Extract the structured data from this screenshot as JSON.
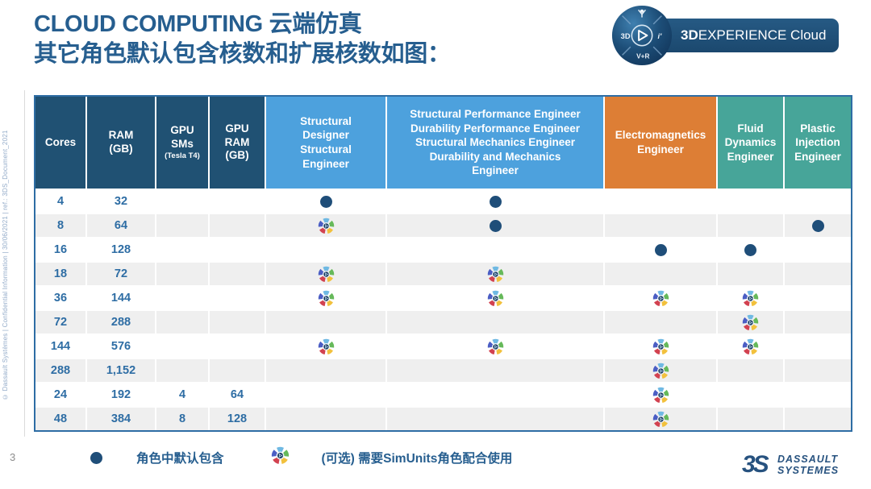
{
  "page": {
    "title_line1": "CLOUD COMPUTING 云端仿真",
    "title_line2": "其它角色默认包含核数和扩展核数如图：",
    "page_number": "3",
    "sidebar_note": "© Dassault Systèmes | Confidential Information | 30/06/2021 | ref.: 3DS_Document_2021"
  },
  "logo": {
    "brand_bold": "3D",
    "brand_rest": "EXPERIENCE Cloud",
    "compass": {
      "left": "3D",
      "right": "i'",
      "bottom": "V+R"
    }
  },
  "table": {
    "spec_columns": [
      {
        "label": "Cores",
        "sub": ""
      },
      {
        "label": "RAM\n(GB)",
        "sub": ""
      },
      {
        "label": "GPU\nSMs",
        "sub": "(Tesla T4)"
      },
      {
        "label": "GPU\nRAM\n(GB)",
        "sub": ""
      }
    ],
    "role_columns": [
      {
        "label": "Structural Designer\nStructural Engineer",
        "color": "#4da1dd",
        "narrow": true
      },
      {
        "label": "Structural Performance Engineer\nDurability Performance Engineer\nStructural Mechanics Engineer\nDurability and Mechanics\nEngineer",
        "color": "#4da1dd",
        "narrow": false
      },
      {
        "label": "Electromagnetics\nEngineer",
        "color": "#dd7e35",
        "narrow": false
      },
      {
        "label": "Fluid Dynamics\nEngineer",
        "color": "#47a599",
        "narrow": false
      },
      {
        "label": "Plastic Injection\nEngineer",
        "color": "#47a599",
        "narrow": false
      }
    ],
    "rows": [
      {
        "cores": "4",
        "ram": "32",
        "gpu_sms": "",
        "gpu_ram": "",
        "marks": [
          "dot",
          "dot",
          "",
          "",
          ""
        ]
      },
      {
        "cores": "8",
        "ram": "64",
        "gpu_sms": "",
        "gpu_ram": "",
        "marks": [
          "sim",
          "dot",
          "",
          "",
          "dot"
        ]
      },
      {
        "cores": "16",
        "ram": "128",
        "gpu_sms": "",
        "gpu_ram": "",
        "marks": [
          "",
          "",
          "dot",
          "dot",
          ""
        ]
      },
      {
        "cores": "18",
        "ram": "72",
        "gpu_sms": "",
        "gpu_ram": "",
        "marks": [
          "sim",
          "sim",
          "",
          "",
          ""
        ]
      },
      {
        "cores": "36",
        "ram": "144",
        "gpu_sms": "",
        "gpu_ram": "",
        "marks": [
          "sim",
          "sim",
          "sim",
          "sim",
          ""
        ]
      },
      {
        "cores": "72",
        "ram": "288",
        "gpu_sms": "",
        "gpu_ram": "",
        "marks": [
          "",
          "",
          "",
          "sim",
          ""
        ]
      },
      {
        "cores": "144",
        "ram": "576",
        "gpu_sms": "",
        "gpu_ram": "",
        "marks": [
          "sim",
          "sim",
          "sim",
          "sim",
          ""
        ]
      },
      {
        "cores": "288",
        "ram": "1,152",
        "gpu_sms": "",
        "gpu_ram": "",
        "marks": [
          "",
          "",
          "sim",
          "",
          ""
        ]
      },
      {
        "cores": "24",
        "ram": "192",
        "gpu_sms": "4",
        "gpu_ram": "64",
        "marks": [
          "",
          "",
          "sim",
          "",
          ""
        ]
      },
      {
        "cores": "48",
        "ram": "384",
        "gpu_sms": "8",
        "gpu_ram": "128",
        "marks": [
          "",
          "",
          "sim",
          "",
          ""
        ]
      }
    ]
  },
  "legend": {
    "dot_label": "角色中默认包含",
    "sim_label": "(可选) 需要SimUnits角色配合使用"
  },
  "footer": {
    "mark": "3S",
    "line1": "DASSAULT",
    "line2": "SYSTEMES"
  },
  "colors": {
    "header_navy": "#205173",
    "role_blue": "#4da1dd",
    "role_orange": "#dd7e35",
    "role_teal": "#47a599",
    "dot_navy": "#1f4e79",
    "row_alt": "#efefef",
    "accent_text": "#265e8f"
  }
}
